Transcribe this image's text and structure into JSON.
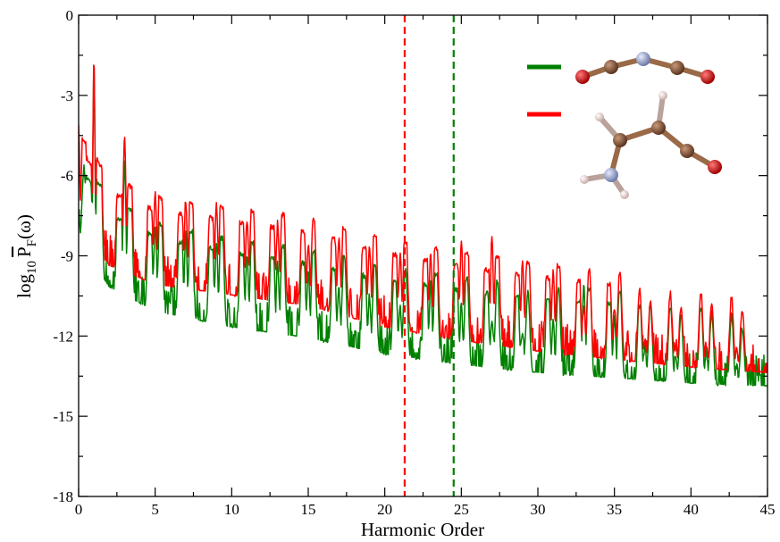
{
  "chart_data": {
    "type": "line",
    "title": "",
    "xlabel": "Harmonic Order",
    "ylabel": {
      "base": "log",
      "sub": "10",
      "symbol": "P",
      "symbol_sub": "F",
      "arg": "(ω)"
    },
    "xlim": [
      0,
      45
    ],
    "ylim": [
      -18,
      0
    ],
    "x_ticks": [
      0,
      5,
      10,
      15,
      20,
      25,
      30,
      35,
      40,
      45
    ],
    "y_ticks": [
      0,
      -3,
      -6,
      -9,
      -12,
      -15,
      -18
    ],
    "x_tick_labels": [
      "0",
      "5",
      "10",
      "15",
      "20",
      "25",
      "30",
      "35",
      "40",
      "45"
    ],
    "y_tick_labels": [
      "0",
      "-3",
      "-6",
      "-9",
      "-12",
      "-15",
      "-18"
    ],
    "grid": false,
    "legend_position": "top-right",
    "cutoff_lines": [
      {
        "x": 21.3,
        "color": "#ff0000",
        "style": "dashed"
      },
      {
        "x": 24.5,
        "color": "#008000",
        "style": "dashed"
      }
    ],
    "series": [
      {
        "color": "#008000",
        "legend_molecule": "linear chain O–C–N–C–O",
        "noise_floor": [
          [
            0,
            -8.5
          ],
          [
            2,
            -10.3
          ],
          [
            5,
            -11.2
          ],
          [
            10,
            -11.8
          ],
          [
            15,
            -12.2
          ],
          [
            20,
            -12.8
          ],
          [
            25,
            -13.2
          ],
          [
            30,
            -13.5
          ],
          [
            35,
            -13.7
          ],
          [
            40,
            -13.9
          ],
          [
            45,
            -14.0
          ]
        ],
        "peaks": [
          {
            "x": 0.0,
            "y": -7.2
          },
          {
            "x": 1.0,
            "y": -1.8
          },
          {
            "x": 3.0,
            "y": -5.5
          },
          {
            "x": 5.0,
            "y": -7.9
          },
          {
            "x": 7.0,
            "y": -8.2
          },
          {
            "x": 9.0,
            "y": -8.5
          },
          {
            "x": 11.0,
            "y": -9.0
          },
          {
            "x": 13.0,
            "y": -9.3
          },
          {
            "x": 15.0,
            "y": -9.6
          },
          {
            "x": 17.0,
            "y": -10.2
          },
          {
            "x": 19.0,
            "y": -10.5
          },
          {
            "x": 21.0,
            "y": -10.8
          },
          {
            "x": 23.0,
            "y": -10.0
          },
          {
            "x": 25.0,
            "y": -10.8
          },
          {
            "x": 27.0,
            "y": -11.3
          },
          {
            "x": 29.0,
            "y": -11.8
          },
          {
            "x": 31.0,
            "y": -11.5
          },
          {
            "x": 33.0,
            "y": -10.0
          },
          {
            "x": 35.0,
            "y": -11.3
          },
          {
            "x": 37.0,
            "y": -12.3
          },
          {
            "x": 39.0,
            "y": -12.7
          },
          {
            "x": 41.0,
            "y": -12.6
          },
          {
            "x": 43.0,
            "y": -13.2
          }
        ]
      },
      {
        "color": "#ff0000",
        "legend_molecule": "aminoacrolein-like H2N–C(H)=C(H)–C=O",
        "noise_floor": [
          [
            0,
            -7.8
          ],
          [
            2,
            -9.5
          ],
          [
            5,
            -10.2
          ],
          [
            10,
            -10.6
          ],
          [
            15,
            -11.0
          ],
          [
            20,
            -11.8
          ],
          [
            25,
            -12.3
          ],
          [
            30,
            -12.7
          ],
          [
            35,
            -13.0
          ],
          [
            40,
            -13.3
          ],
          [
            45,
            -13.5
          ]
        ],
        "peaks": [
          {
            "x": 0.0,
            "y": -4.2
          },
          {
            "x": 1.0,
            "y": -1.6
          },
          {
            "x": 3.0,
            "y": -4.5
          },
          {
            "x": 5.0,
            "y": -6.6
          },
          {
            "x": 7.0,
            "y": -6.9
          },
          {
            "x": 9.0,
            "y": -7.0
          },
          {
            "x": 11.0,
            "y": -7.7
          },
          {
            "x": 13.0,
            "y": -7.8
          },
          {
            "x": 15.0,
            "y": -8.6
          },
          {
            "x": 17.0,
            "y": -8.3
          },
          {
            "x": 19.0,
            "y": -8.6
          },
          {
            "x": 21.0,
            "y": -8.9
          },
          {
            "x": 23.0,
            "y": -8.9
          },
          {
            "x": 25.0,
            "y": -8.4
          },
          {
            "x": 27.0,
            "y": -8.3
          },
          {
            "x": 29.0,
            "y": -9.2
          },
          {
            "x": 31.0,
            "y": -9.6
          },
          {
            "x": 33.0,
            "y": -10.8
          },
          {
            "x": 35.0,
            "y": -10.9
          },
          {
            "x": 37.0,
            "y": -12.2
          },
          {
            "x": 39.0,
            "y": -12.4
          },
          {
            "x": 41.0,
            "y": -12.3
          },
          {
            "x": 43.0,
            "y": -12.5
          }
        ]
      }
    ]
  },
  "colors": {
    "green": "#008000",
    "red": "#ff0000",
    "carbon": "#8b5a3c",
    "oxygen": "#e01010",
    "nitrogen": "#a9b4d6",
    "hydrogen": "#e8d4d0"
  }
}
